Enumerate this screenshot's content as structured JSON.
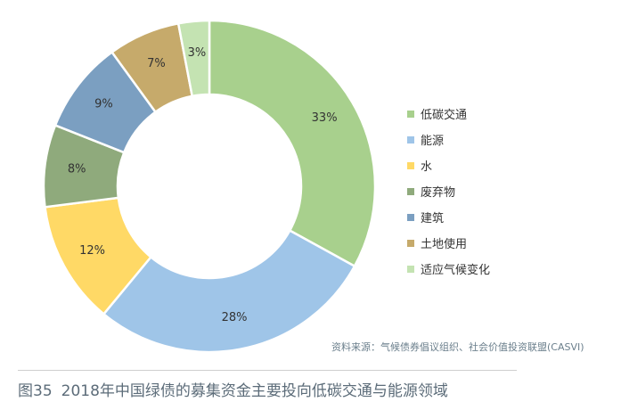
{
  "chart_data": {
    "type": "pie",
    "variant": "donut",
    "slices": [
      {
        "label": "低碳交通",
        "value": 33,
        "value_label": "33%",
        "color": "#a8d08d"
      },
      {
        "label": "能源",
        "value": 28,
        "value_label": "28%",
        "color": "#9fc5e8"
      },
      {
        "label": "水",
        "value": 12,
        "value_label": "12%",
        "color": "#ffd966"
      },
      {
        "label": "废弃物",
        "value": 8,
        "value_label": "8%",
        "color": "#8faa7c"
      },
      {
        "label": "建筑",
        "value": 9,
        "value_label": "9%",
        "color": "#7b9fc1"
      },
      {
        "label": "土地使用",
        "value": 7,
        "value_label": "7%",
        "color": "#c6aa6b"
      },
      {
        "label": "适应气候变化",
        "value": 3,
        "value_label": "3%",
        "color": "#c4e3b2"
      }
    ],
    "legend_position": "right"
  },
  "source_note": "资料来源：气候债券倡议组织、社会价值投资联盟(CASVI)",
  "caption": {
    "figure_number": "图35",
    "text": "2018年中国绿债的募集资金主要投向低碳交通与能源领域"
  }
}
